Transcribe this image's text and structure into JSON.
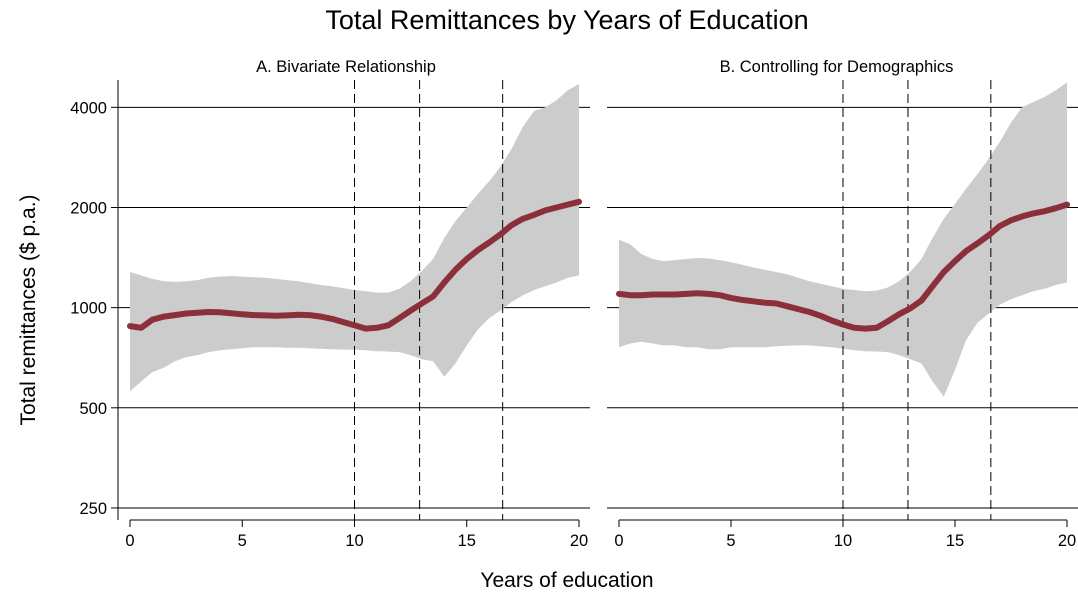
{
  "chart_data": {
    "type": "line",
    "title": "Total Remittances by Years of Education",
    "xlabel": "Years of education",
    "ylabel": "Total remittances ($ p.a.)",
    "yscale": "log2",
    "xlim": [
      0,
      20
    ],
    "ylim": [
      230,
      4800
    ],
    "xticks": [
      0,
      5,
      10,
      15,
      20
    ],
    "yticks": [
      250,
      500,
      1000,
      2000,
      4000
    ],
    "grid": "horizontal",
    "vlines": [
      10,
      12.9,
      16.6
    ],
    "colors": {
      "line": "#8b2f3a",
      "band": "#cccccc",
      "grid": "#000000"
    },
    "panels": [
      {
        "title": "A. Bivariate Relationship",
        "series": [
          {
            "x": [
              0,
              0.5,
              1,
              1.5,
              2,
              2.5,
              3,
              3.5,
              4,
              4.5,
              5,
              5.5,
              6,
              6.5,
              7,
              7.5,
              8,
              8.5,
              9,
              9.5,
              10,
              10.5,
              11,
              11.5,
              12,
              12.5,
              13,
              13.5,
              14,
              14.5,
              15,
              15.5,
              16,
              16.5,
              17,
              17.5,
              18,
              18.5,
              19,
              19.5,
              20
            ],
            "y": [
              880,
              870,
              920,
              940,
              950,
              960,
              965,
              970,
              968,
              962,
              955,
              950,
              948,
              945,
              948,
              952,
              950,
              940,
              925,
              905,
              885,
              865,
              870,
              885,
              930,
              980,
              1030,
              1080,
              1190,
              1300,
              1400,
              1490,
              1570,
              1660,
              1770,
              1850,
              1900,
              1960,
              2000,
              2040,
              2080
            ],
            "lower": [
              560,
              600,
              640,
              660,
              690,
              710,
              720,
              735,
              745,
              750,
              755,
              760,
              760,
              760,
              758,
              758,
              755,
              752,
              750,
              748,
              748,
              745,
              740,
              738,
              735,
              720,
              700,
              690,
              620,
              680,
              770,
              860,
              930,
              980,
              1040,
              1090,
              1130,
              1160,
              1190,
              1230,
              1250
            ],
            "upper": [
              1280,
              1250,
              1220,
              1200,
              1195,
              1200,
              1210,
              1230,
              1240,
              1245,
              1240,
              1235,
              1230,
              1220,
              1210,
              1200,
              1185,
              1170,
              1160,
              1145,
              1130,
              1120,
              1110,
              1110,
              1140,
              1200,
              1290,
              1400,
              1620,
              1820,
              2000,
              2200,
              2400,
              2650,
              3000,
              3500,
              3900,
              4000,
              4200,
              4500,
              4700
            ]
          }
        ]
      },
      {
        "title": "B. Controlling for Demographics",
        "series": [
          {
            "x": [
              0,
              0.5,
              1,
              1.5,
              2,
              2.5,
              3,
              3.5,
              4,
              4.5,
              5,
              5.5,
              6,
              6.5,
              7,
              7.5,
              8,
              8.5,
              9,
              9.5,
              10,
              10.5,
              11,
              11.5,
              12,
              12.5,
              13,
              13.5,
              14,
              14.5,
              15,
              15.5,
              16,
              16.5,
              17,
              17.5,
              18,
              18.5,
              19,
              19.5,
              20
            ],
            "y": [
              1100,
              1090,
              1090,
              1095,
              1095,
              1095,
              1100,
              1105,
              1100,
              1090,
              1070,
              1055,
              1045,
              1035,
              1030,
              1010,
              990,
              970,
              945,
              915,
              890,
              870,
              865,
              870,
              910,
              955,
              995,
              1050,
              1160,
              1280,
              1380,
              1480,
              1560,
              1650,
              1760,
              1830,
              1880,
              1920,
              1950,
              1990,
              2040
            ],
            "lower": [
              760,
              780,
              790,
              780,
              770,
              770,
              760,
              760,
              750,
              750,
              760,
              760,
              760,
              760,
              765,
              768,
              770,
              770,
              765,
              760,
              752,
              745,
              740,
              738,
              735,
              720,
              700,
              680,
              600,
              540,
              650,
              800,
              900,
              960,
              1020,
              1060,
              1090,
              1120,
              1140,
              1170,
              1190
            ],
            "upper": [
              1600,
              1550,
              1450,
              1400,
              1380,
              1390,
              1400,
              1410,
              1405,
              1390,
              1370,
              1345,
              1320,
              1300,
              1280,
              1260,
              1230,
              1200,
              1180,
              1160,
              1140,
              1130,
              1120,
              1125,
              1150,
              1200,
              1280,
              1400,
              1620,
              1850,
              2050,
              2280,
              2520,
              2800,
              3150,
              3600,
              4000,
              4150,
              4300,
              4500,
              4750
            ]
          }
        ]
      }
    ]
  }
}
